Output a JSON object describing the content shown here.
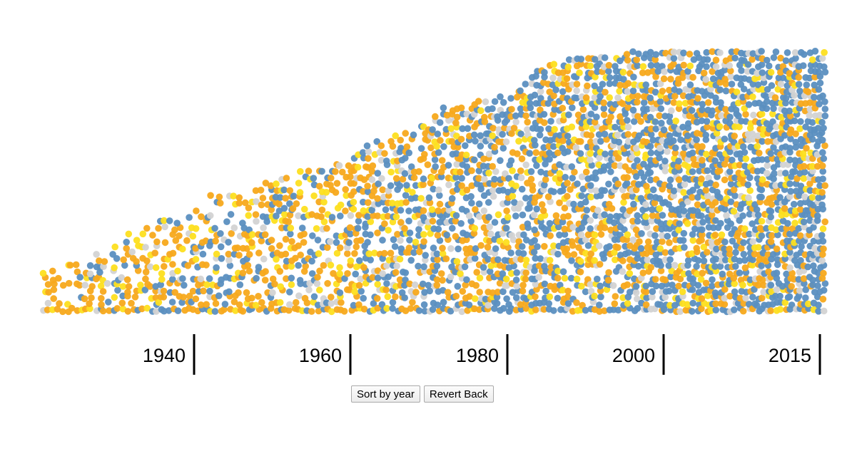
{
  "chart_data": {
    "type": "scatter",
    "description_of_encoding": "beeswarm of dots stacked by year",
    "x_axis": {
      "ticks": [
        {
          "label": "1940",
          "year": 1940
        },
        {
          "label": "1960",
          "year": 1960
        },
        {
          "label": "1980",
          "year": 1980
        },
        {
          "label": "2000",
          "year": 2000
        },
        {
          "label": "2015",
          "year": 2015
        }
      ],
      "xlim": [
        1921,
        2016
      ]
    },
    "categories": [
      "blue",
      "orange",
      "yellow",
      "gray"
    ],
    "colors": {
      "blue": "#5b8fc0",
      "orange": "#f7a91c",
      "yellow": "#fddf1f",
      "gray": "#d3d3d3"
    },
    "density_by_year": [
      {
        "year": 1922,
        "stack": 7
      },
      {
        "year": 1926,
        "stack": 8
      },
      {
        "year": 1930,
        "stack": 12
      },
      {
        "year": 1934,
        "stack": 14
      },
      {
        "year": 1938,
        "stack": 16
      },
      {
        "year": 1942,
        "stack": 19
      },
      {
        "year": 1946,
        "stack": 19
      },
      {
        "year": 1950,
        "stack": 22
      },
      {
        "year": 1954,
        "stack": 23
      },
      {
        "year": 1958,
        "stack": 24
      },
      {
        "year": 1962,
        "stack": 28
      },
      {
        "year": 1966,
        "stack": 29
      },
      {
        "year": 1970,
        "stack": 33
      },
      {
        "year": 1974,
        "stack": 34
      },
      {
        "year": 1978,
        "stack": 35
      },
      {
        "year": 1982,
        "stack": 40
      },
      {
        "year": 1986,
        "stack": 41
      },
      {
        "year": 1990,
        "stack": 41
      },
      {
        "year": 1994,
        "stack": 42
      },
      {
        "year": 1998,
        "stack": 42
      },
      {
        "year": 2002,
        "stack": 42
      },
      {
        "year": 2006,
        "stack": 42
      },
      {
        "year": 2010,
        "stack": 42
      },
      {
        "year": 2014,
        "stack": 42
      },
      {
        "year": 2016,
        "stack": 42
      }
    ]
  },
  "controls": {
    "sort_label": "Sort by year",
    "revert_label": "Revert Back"
  }
}
